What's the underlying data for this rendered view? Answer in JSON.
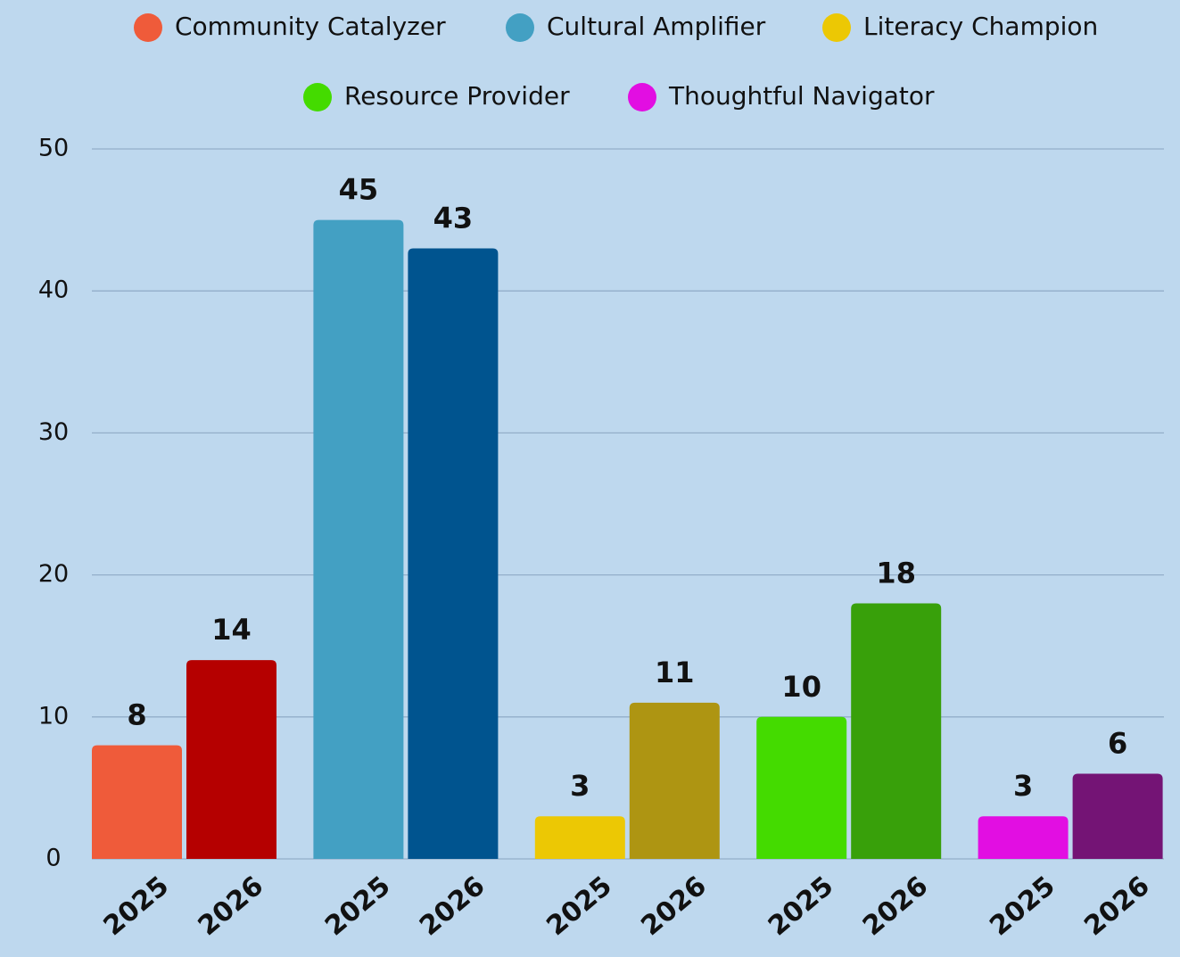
{
  "chart_data": {
    "type": "grouped-bar",
    "categories": [
      "2025",
      "2026"
    ],
    "series": [
      {
        "name": "Community Catalyzer",
        "color": "#ef5b3a",
        "bar_colors": [
          "#ef5b3a",
          "#b50000"
        ],
        "values": [
          8,
          14
        ]
      },
      {
        "name": "Cultural Amplifier",
        "color": "#43a0c3",
        "bar_colors": [
          "#43a0c3",
          "#00548f"
        ],
        "values": [
          45,
          43
        ]
      },
      {
        "name": "Literacy Champion",
        "color": "#ecc804",
        "bar_colors": [
          "#ecc804",
          "#ae9512"
        ],
        "values": [
          3,
          11
        ]
      },
      {
        "name": "Resource Provider",
        "color": "#44db00",
        "bar_colors": [
          "#44db00",
          "#38a00a"
        ],
        "values": [
          10,
          18
        ]
      },
      {
        "name": "Thoughtful Navigator",
        "color": "#e20ee2",
        "bar_colors": [
          "#e20ee2",
          "#741475"
        ],
        "values": [
          3,
          6
        ]
      }
    ],
    "ylim": [
      0,
      50
    ],
    "yticks": [
      0,
      10,
      20,
      30,
      40,
      50
    ],
    "grid": true,
    "legend": "top"
  }
}
